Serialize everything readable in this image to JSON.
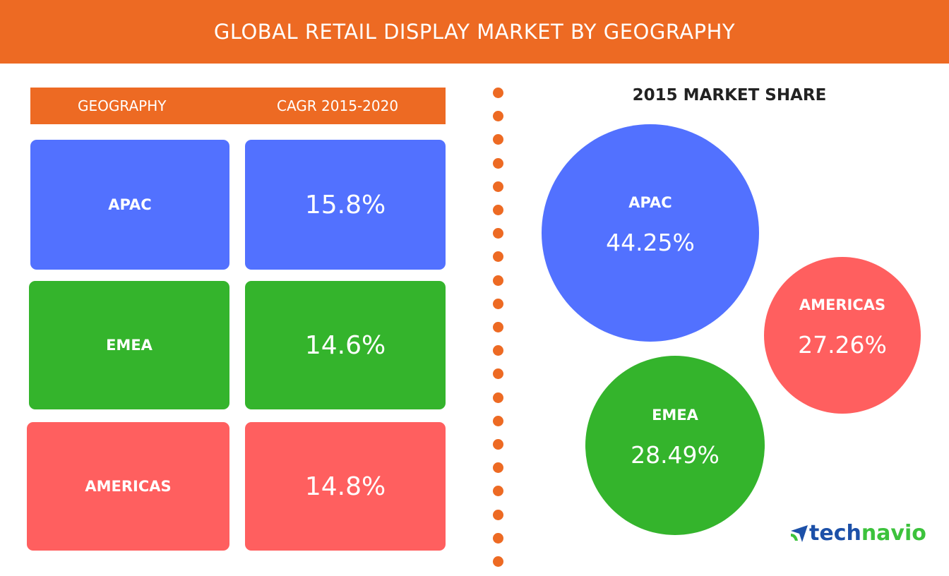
{
  "title": "GLOBAL RETAIL DISPLAY MARKET BY GEOGRAPHY",
  "colors": {
    "accent": "#ed6a23",
    "APAC": "#5271ff",
    "EMEA": "#34b42c",
    "AMERICAS": "#ff5f5f"
  },
  "chart_data": [
    {
      "type": "table",
      "columns": [
        "GEOGRAPHY",
        "CAGR 2015-2020"
      ],
      "rows": [
        {
          "geography": "APAC",
          "cagr": "15.8%"
        },
        {
          "geography": "EMEA",
          "cagr": "14.6%"
        },
        {
          "geography": "AMERICAS",
          "cagr": "14.8%"
        }
      ]
    },
    {
      "type": "bubble",
      "title": "2015 MARKET SHARE",
      "series": [
        {
          "name": "APAC",
          "value": 44.25,
          "label": "44.25%"
        },
        {
          "name": "AMERICAS",
          "value": 27.26,
          "label": "27.26%"
        },
        {
          "name": "EMEA",
          "value": 28.49,
          "label": "28.49%"
        }
      ]
    }
  ],
  "logo": {
    "part1": "tech",
    "part2": "navio",
    "icon": "technavio-arrow-icon"
  }
}
